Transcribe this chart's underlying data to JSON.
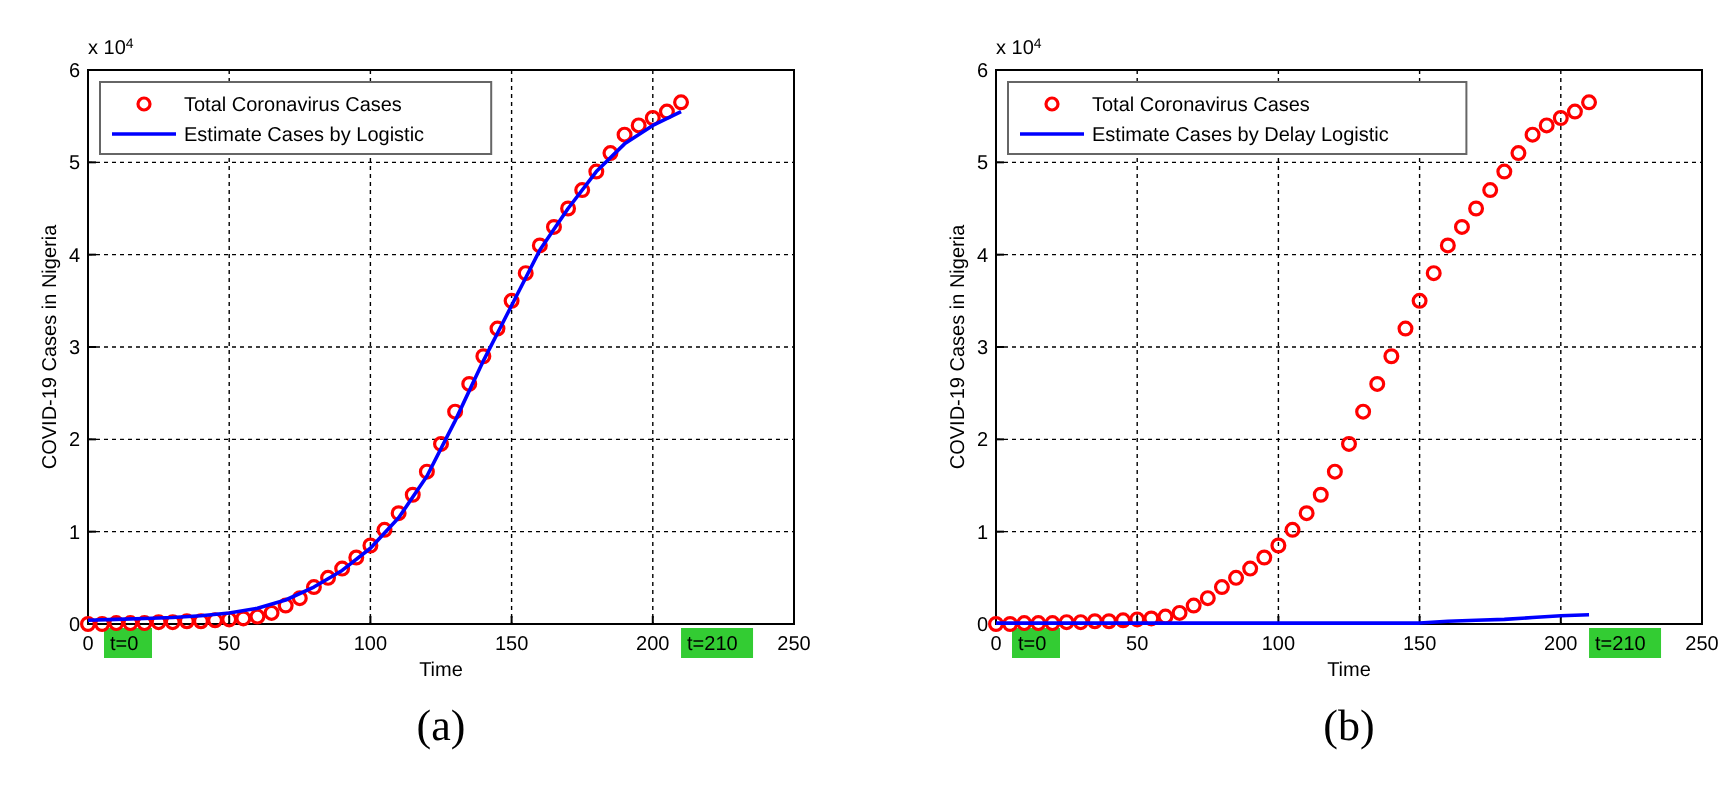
{
  "chart_data": [
    {
      "type": "scatter",
      "xlabel": "Time",
      "ylabel": "COVID-19 Cases in Nigeria",
      "xlim": [
        0,
        250
      ],
      "xticks": [
        0,
        50,
        100,
        150,
        200,
        250
      ],
      "ylim": [
        0,
        6
      ],
      "yticks": [
        0,
        1,
        2,
        3,
        4,
        5,
        6
      ],
      "grid": true,
      "legend": "top left",
      "annotations": [
        "x 10$^{4}$",
        "(a)",
        "t=0",
        "t=210"
      ],
      "series": [
        {
          "name": "Total Coronavirus Cases",
          "marker": "circle",
          "color": "#ff0000",
          "x": [
            0,
            5,
            10,
            15,
            20,
            25,
            30,
            35,
            40,
            45,
            50,
            55,
            60,
            65,
            70,
            75,
            80,
            85,
            90,
            95,
            100,
            105,
            110,
            115,
            120,
            125,
            130,
            135,
            140,
            145,
            150,
            155,
            160,
            165,
            170,
            175,
            180,
            185,
            190,
            195,
            200,
            205,
            210
          ],
          "values": [
            0,
            0,
            0.01,
            0.01,
            0.01,
            0.02,
            0.02,
            0.03,
            0.03,
            0.04,
            0.05,
            0.06,
            0.08,
            0.12,
            0.2,
            0.28,
            0.4,
            0.5,
            0.6,
            0.72,
            0.85,
            1.02,
            1.2,
            1.4,
            1.65,
            1.95,
            2.3,
            2.6,
            2.9,
            3.2,
            3.5,
            3.8,
            4.1,
            4.3,
            4.5,
            4.7,
            4.9,
            5.1,
            5.3,
            5.4,
            5.48,
            5.55,
            5.65
          ]
        },
        {
          "name": "Estimate Cases by Logistic",
          "type": "line",
          "marker": "none",
          "line_style": "solid",
          "color": "#0000ff",
          "x": [
            0,
            10,
            20,
            30,
            40,
            50,
            60,
            70,
            80,
            90,
            100,
            110,
            120,
            130,
            140,
            150,
            160,
            170,
            180,
            190,
            200,
            210
          ],
          "values": [
            0.04,
            0.05,
            0.06,
            0.07,
            0.09,
            0.12,
            0.17,
            0.26,
            0.4,
            0.58,
            0.82,
            1.15,
            1.6,
            2.2,
            2.85,
            3.45,
            4.05,
            4.5,
            4.9,
            5.2,
            5.4,
            5.55
          ]
        }
      ]
    },
    {
      "type": "scatter",
      "xlabel": "Time",
      "ylabel": "COVID-19 Cases in Nigeria",
      "xlim": [
        0,
        250
      ],
      "xticks": [
        0,
        50,
        100,
        150,
        200,
        250
      ],
      "ylim": [
        0,
        6
      ],
      "yticks": [
        0,
        1,
        2,
        3,
        4,
        5,
        6
      ],
      "grid": true,
      "legend": "top left",
      "annotations": [
        "x 10$^{4}$",
        "(b)",
        "t=0",
        "t=210"
      ],
      "series": [
        {
          "name": "Total Coronavirus Cases",
          "marker": "circle",
          "color": "#ff0000",
          "x": [
            0,
            5,
            10,
            15,
            20,
            25,
            30,
            35,
            40,
            45,
            50,
            55,
            60,
            65,
            70,
            75,
            80,
            85,
            90,
            95,
            100,
            105,
            110,
            115,
            120,
            125,
            130,
            135,
            140,
            145,
            150,
            155,
            160,
            165,
            170,
            175,
            180,
            185,
            190,
            195,
            200,
            205,
            210
          ],
          "values": [
            0,
            0,
            0.01,
            0.01,
            0.01,
            0.02,
            0.02,
            0.03,
            0.03,
            0.04,
            0.05,
            0.06,
            0.08,
            0.12,
            0.2,
            0.28,
            0.4,
            0.5,
            0.6,
            0.72,
            0.85,
            1.02,
            1.2,
            1.4,
            1.65,
            1.95,
            2.3,
            2.6,
            2.9,
            3.2,
            3.5,
            3.8,
            4.1,
            4.3,
            4.5,
            4.7,
            4.9,
            5.1,
            5.3,
            5.4,
            5.48,
            5.55,
            5.65
          ]
        },
        {
          "name": "Estimate Cases by Delay Logistic",
          "type": "line",
          "marker": "none",
          "line_style": "solid",
          "color": "#0000ff",
          "x": [
            0,
            50,
            100,
            150,
            160,
            170,
            180,
            190,
            200,
            210
          ],
          "values": [
            0.01,
            0.01,
            0.01,
            0.01,
            0.03,
            0.04,
            0.05,
            0.07,
            0.09,
            0.1
          ]
        }
      ]
    }
  ]
}
